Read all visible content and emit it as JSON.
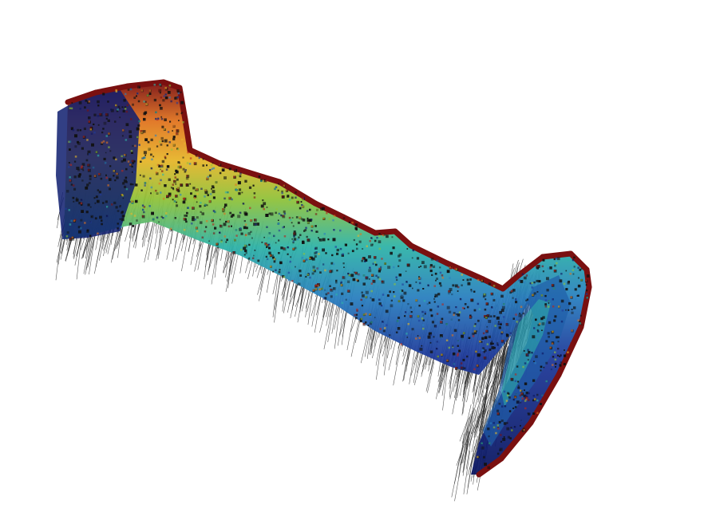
{
  "scene": {
    "background_color": "#ffffff",
    "object": "colored-3d-point-cloud-with-normals",
    "colormap": "jet",
    "colormap_colors": [
      "#0b1660",
      "#1f3a9a",
      "#2a7fbf",
      "#2fb3a8",
      "#8fc23a",
      "#e6b52a",
      "#e0731f",
      "#b8261a",
      "#7a1010"
    ],
    "normal_line_color": "#222222",
    "marker_color": "#111111"
  }
}
